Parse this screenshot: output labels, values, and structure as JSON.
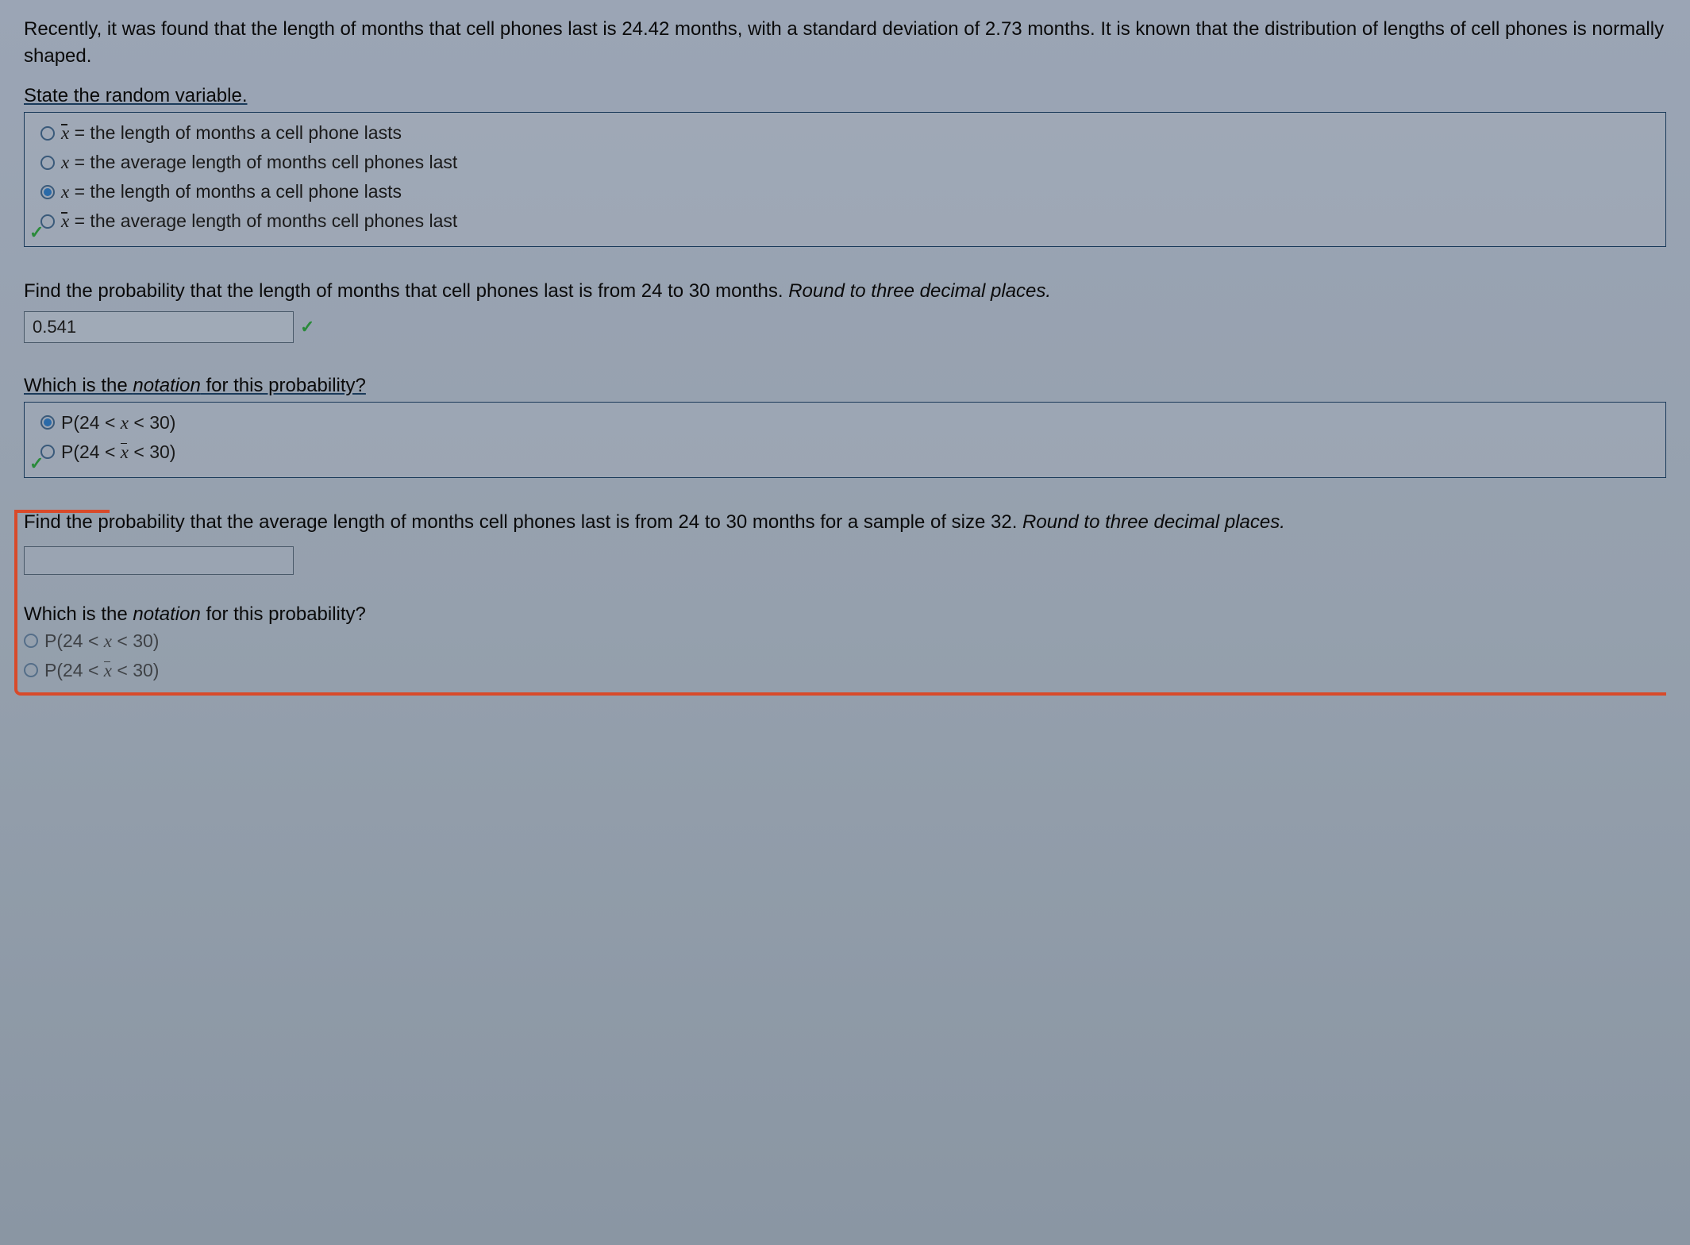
{
  "intro": "Recently, it was found that the length of months that cell phones last is 24.42 months, with a standard deviation of 2.73 months. It is known that the distribution of lengths of cell phones is normally shaped.",
  "q1": {
    "label": "State the random variable.",
    "options": [
      {
        "var": "x̄",
        "text": " = the length of months a cell phone lasts",
        "selected": false,
        "isBar": true
      },
      {
        "var": "x",
        "text": " = the average length of months cell phones last",
        "selected": false,
        "isBar": false
      },
      {
        "var": "x",
        "text": " = the length of months a cell phone lasts",
        "selected": true,
        "isBar": false
      },
      {
        "var": "x̄",
        "text": " = the average length of months cell phones last",
        "selected": false,
        "isBar": true
      }
    ]
  },
  "q2": {
    "prompt_main": "Find the probability that the length of months that cell phones last is from 24 to 30 months. ",
    "prompt_hint": "Round to three decimal places.",
    "answer": "0.541"
  },
  "q3": {
    "label_pre": "Which is the ",
    "label_em": "notation",
    "label_post": " for this probability?",
    "options": [
      {
        "text": "P(24 < x < 30)",
        "selected": true,
        "isBar": false
      },
      {
        "text": "P(24 < x̄ < 30)",
        "selected": false,
        "isBar": true
      }
    ]
  },
  "q4": {
    "prompt_main": "Find the probability that the average length of months cell phones last is from 24 to 30 months for a sample of size 32. ",
    "prompt_hint": "Round to three decimal places.",
    "answer": ""
  },
  "q5": {
    "label_pre": "Which is the ",
    "label_em": "notation",
    "label_post": " for this probability?",
    "options": [
      {
        "text": "P(24 < x < 30)",
        "selected": false,
        "isBar": false
      },
      {
        "text": "P(24 < x̄ < 30)",
        "selected": false,
        "isBar": true
      }
    ]
  },
  "colors": {
    "background_top": "#9ba5b5",
    "background_bottom": "#8a96a3",
    "border": "#1a3a5a",
    "radio_fill": "#2a6aa8",
    "check_green": "#2a8a3a",
    "highlight_red": "#d84a2a",
    "text": "#0a0a0a"
  }
}
